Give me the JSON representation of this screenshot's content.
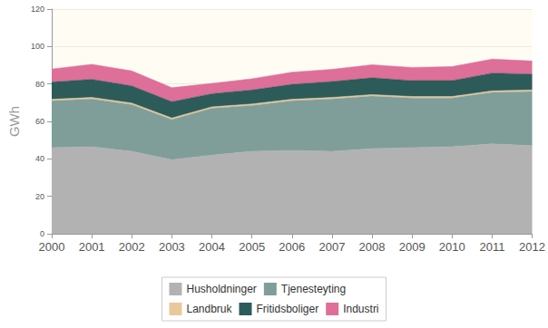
{
  "chart_data": {
    "type": "area",
    "stacked": true,
    "grid": true,
    "legend": "bottom",
    "y_label": "GWh",
    "categories": [
      "2000",
      "2001",
      "2002",
      "2003",
      "2004",
      "2005",
      "2006",
      "2007",
      "2008",
      "2009",
      "2010",
      "2011",
      "2012"
    ],
    "ylim": [
      0,
      120
    ],
    "yticks": [
      0,
      20,
      40,
      60,
      80,
      100,
      120
    ],
    "series": [
      {
        "name": "Husholdninger",
        "color": "#b2b2b2",
        "values": [
          46,
          46.5,
          44,
          39.5,
          42,
          44,
          44.5,
          44,
          45.5,
          46,
          46.5,
          48,
          47
        ]
      },
      {
        "name": "Tjenesteyting",
        "color": "#7f9e9a",
        "values": [
          25,
          25.5,
          25,
          21.5,
          25,
          24.5,
          26.5,
          28,
          28,
          26.5,
          26,
          27.5,
          29
        ]
      },
      {
        "name": "Landbruk",
        "color": "#e9c99b",
        "values": [
          0.8,
          0.8,
          0.8,
          0.8,
          0.8,
          0.8,
          0.8,
          0.8,
          0.8,
          0.8,
          0.8,
          0.8,
          0.8
        ]
      },
      {
        "name": "Fritidsboliger",
        "color": "#2d5b5a",
        "values": [
          9.2,
          9.7,
          9.2,
          8.7,
          7,
          7.5,
          8,
          8.5,
          9,
          8.5,
          8.5,
          9.5,
          8.5
        ]
      },
      {
        "name": "Industri",
        "color": "#de6f99",
        "values": [
          7,
          8,
          8,
          7.5,
          5.5,
          6,
          6.5,
          6.5,
          7,
          7,
          7.5,
          7.5,
          7
        ]
      }
    ]
  }
}
